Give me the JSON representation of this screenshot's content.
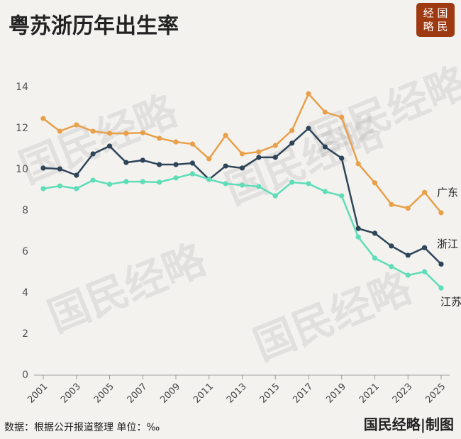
{
  "chart_data": {
    "type": "line",
    "title": "粤苏浙历年出生率",
    "x": [
      2001,
      2002,
      2003,
      2004,
      2005,
      2006,
      2007,
      2008,
      2009,
      2010,
      2011,
      2012,
      2013,
      2014,
      2015,
      2016,
      2017,
      2018,
      2019,
      2020,
      2021,
      2022,
      2023,
      2024,
      2025
    ],
    "xlim": [
      2001,
      2025
    ],
    "xticks": [
      2001,
      2003,
      2005,
      2007,
      2009,
      2011,
      2013,
      2015,
      2017,
      2019,
      2021,
      2023,
      2025
    ],
    "ylim": [
      0,
      14
    ],
    "yticks": [
      0,
      2,
      4,
      6,
      8,
      10,
      12,
      14
    ],
    "grid": false,
    "series": [
      {
        "name": "广东",
        "color": "#e8a04a",
        "values": [
          12.48,
          11.86,
          12.17,
          11.86,
          11.76,
          11.76,
          11.79,
          11.52,
          11.34,
          11.24,
          10.52,
          11.66,
          10.76,
          10.86,
          11.17,
          11.9,
          13.68,
          12.79,
          12.54,
          10.28,
          9.35,
          8.3,
          8.12,
          8.89,
          7.9
        ]
      },
      {
        "name": "浙江",
        "color": "#2e4459",
        "values": [
          10.07,
          10.03,
          9.72,
          10.76,
          11.14,
          10.34,
          10.45,
          10.24,
          10.24,
          10.31,
          9.52,
          10.17,
          10.07,
          10.59,
          10.59,
          11.28,
          12.0,
          11.1,
          10.55,
          7.13,
          6.9,
          6.28,
          5.83,
          6.2,
          5.4
        ]
      },
      {
        "name": "江苏",
        "color": "#5fdcb8",
        "values": [
          9.07,
          9.2,
          9.07,
          9.48,
          9.28,
          9.41,
          9.41,
          9.38,
          9.59,
          9.79,
          9.52,
          9.31,
          9.24,
          9.17,
          8.72,
          9.38,
          9.31,
          8.93,
          8.72,
          6.72,
          5.69,
          5.28,
          4.86,
          5.03,
          4.24
        ]
      }
    ],
    "watermark": "国民经略",
    "logo": [
      "经 国",
      "略 民"
    ],
    "source": "数据：根据公开报道整理  单位：‰",
    "credit": "国民经略|制图"
  }
}
